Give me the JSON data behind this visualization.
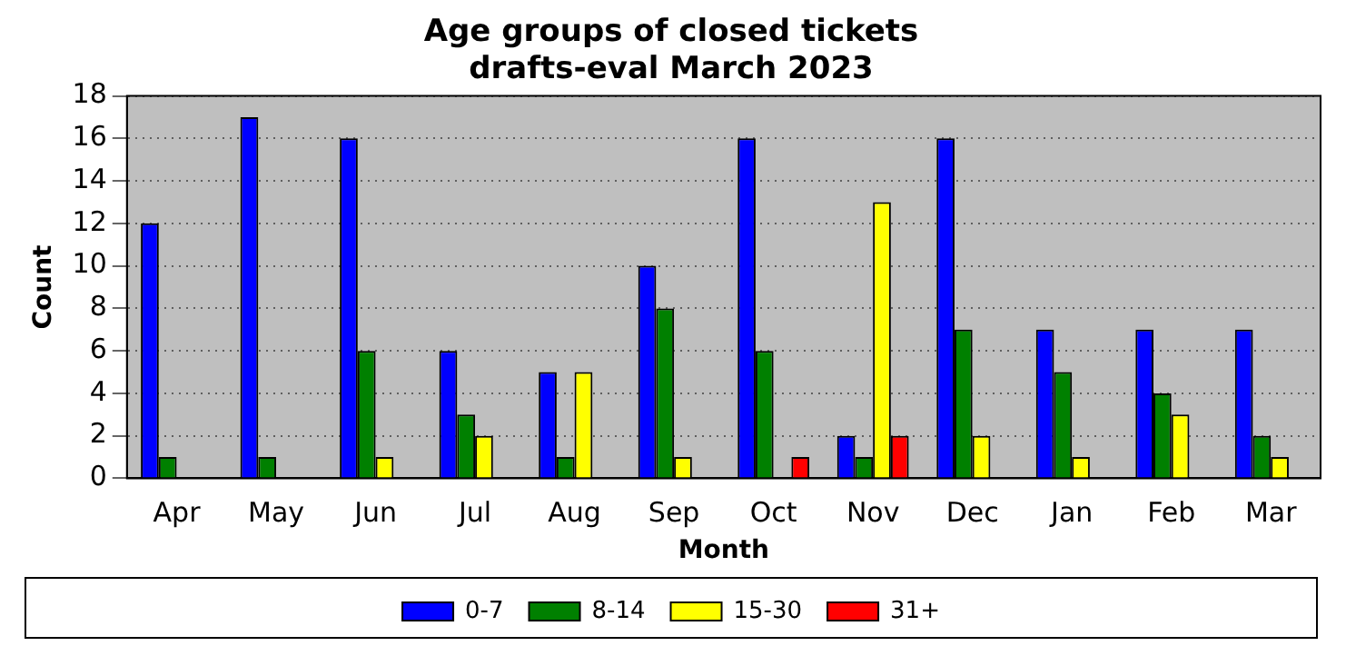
{
  "chart_data": {
    "type": "bar",
    "title": "Age groups of closed tickets\ndrafts-eval March 2023",
    "xlabel": "Month",
    "ylabel": "Count",
    "categories": [
      "Apr",
      "May",
      "Jun",
      "Jul",
      "Aug",
      "Sep",
      "Oct",
      "Nov",
      "Dec",
      "Jan",
      "Feb",
      "Mar"
    ],
    "series": [
      {
        "name": "0-7",
        "color": "#0000ff",
        "values": [
          12,
          17,
          16,
          6,
          5,
          10,
          16,
          2,
          16,
          7,
          7,
          7
        ]
      },
      {
        "name": "8-14",
        "color": "#008000",
        "values": [
          1,
          1,
          6,
          3,
          1,
          8,
          6,
          1,
          7,
          5,
          4,
          2
        ]
      },
      {
        "name": "15-30",
        "color": "#ffff00",
        "values": [
          0,
          0,
          1,
          2,
          5,
          1,
          0,
          13,
          2,
          1,
          3,
          1
        ]
      },
      {
        "name": "31+",
        "color": "#ff0000",
        "values": [
          0,
          0,
          0,
          0,
          0,
          0,
          1,
          2,
          0,
          0,
          0,
          0
        ]
      }
    ],
    "ylim": [
      0,
      18
    ],
    "yticks": [
      0,
      2,
      4,
      6,
      8,
      10,
      12,
      14,
      16,
      18
    ],
    "grid": "y",
    "legend": "bottom"
  }
}
